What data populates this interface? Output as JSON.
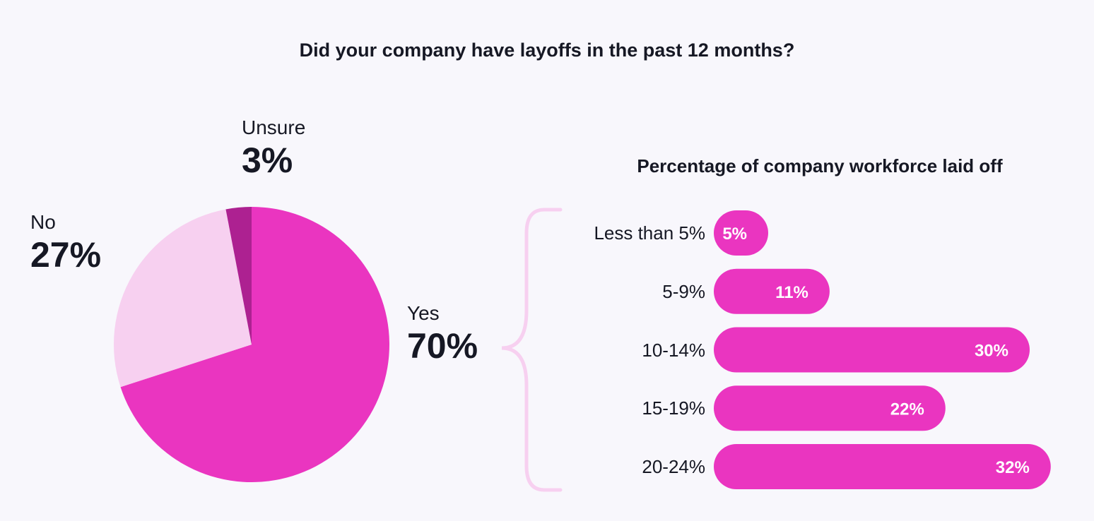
{
  "chart_data": [
    {
      "type": "pie",
      "title": "Did your company have layoffs in the past 12 months?",
      "slices": [
        {
          "label": "Yes",
          "value": 70,
          "display": "70%",
          "color": "#ea35c0"
        },
        {
          "label": "No",
          "value": 27,
          "display": "27%",
          "color": "#f7d0f0"
        },
        {
          "label": "Unsure",
          "value": 3,
          "display": "3%",
          "color": "#ad2191"
        }
      ]
    },
    {
      "type": "bar",
      "orientation": "horizontal",
      "title": "Percentage of company workforce laid off",
      "categories": [
        "Less than 5%",
        "5-9%",
        "10-14%",
        "15-19%",
        "20-24%"
      ],
      "values": [
        5,
        11,
        30,
        22,
        32
      ],
      "value_labels": [
        "5%",
        "11%",
        "30%",
        "22%",
        "32%"
      ],
      "color": "#ea35c0",
      "bracket_color": "#f7d0f0"
    }
  ]
}
